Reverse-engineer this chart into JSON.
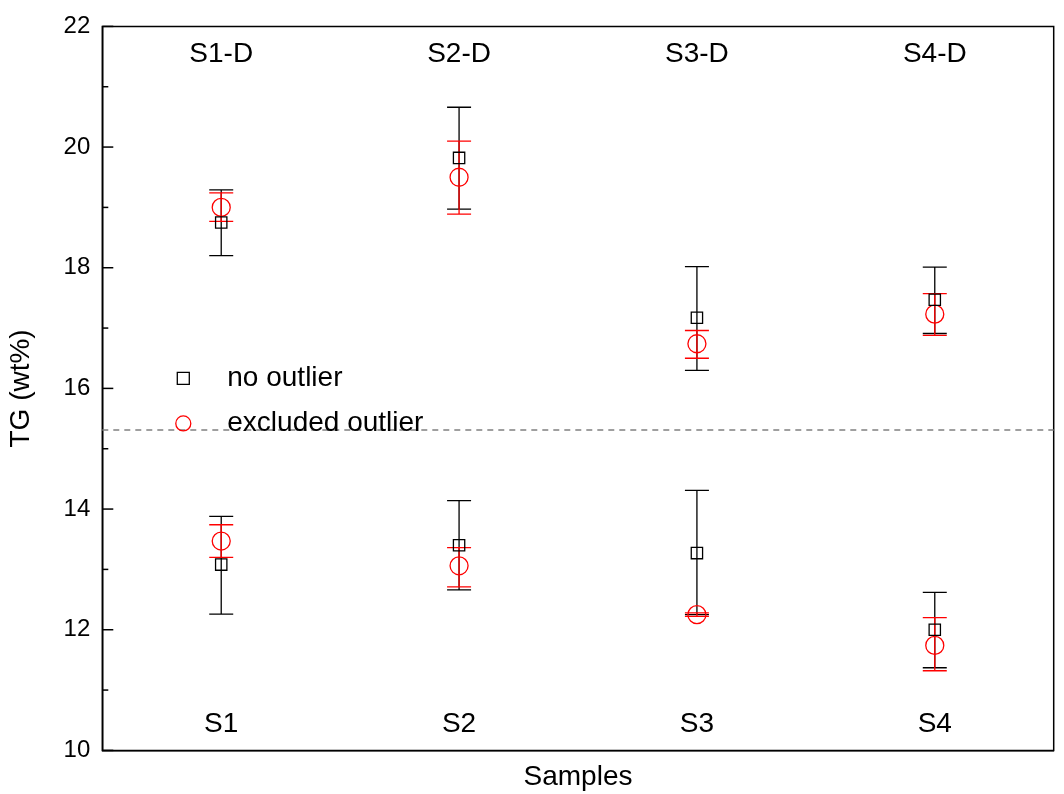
{
  "chart_data": {
    "type": "scatter",
    "xlabel": "Samples",
    "ylabel": "TG (wt%)",
    "categories": [
      "S1",
      "S2",
      "S3",
      "S4"
    ],
    "ylim": [
      10,
      22
    ],
    "yticks": [
      10,
      {
        "value": 11,
        "label": null
      },
      12,
      {
        "value": 13,
        "label": null
      },
      14,
      {
        "value": 15,
        "label": null
      },
      16,
      {
        "value": 17,
        "label": null
      },
      18,
      {
        "value": 19,
        "label": null
      },
      20,
      {
        "value": 21,
        "label": null
      },
      22
    ],
    "series": [
      {
        "name": "no outlier",
        "color": "#000000",
        "marker": "square",
        "x": [
          "S1",
          "S1",
          "S2",
          "S2",
          "S3",
          "S3",
          "S4",
          "S4"
        ],
        "values": [
          13.08,
          18.75,
          13.4,
          19.82,
          13.27,
          17.17,
          12.0,
          17.47
        ],
        "errors": [
          [
            12.26,
            13.88
          ],
          [
            18.2,
            19.29
          ],
          [
            12.66,
            14.14
          ],
          [
            18.97,
            20.66
          ],
          [
            12.25,
            14.31
          ],
          [
            16.3,
            18.02
          ],
          [
            11.37,
            12.62
          ],
          [
            16.91,
            18.01
          ]
        ]
      },
      {
        "name": "excluded outlier",
        "color": "#ff0000",
        "marker": "circle",
        "x": [
          "S1",
          "S1",
          "S2",
          "S2",
          "S3",
          "S3",
          "S4",
          "S4"
        ],
        "values": [
          13.47,
          19.0,
          13.06,
          19.5,
          12.25,
          16.74,
          11.74,
          17.23
        ],
        "errors": [
          [
            13.2,
            13.74
          ],
          [
            18.77,
            19.24
          ],
          [
            12.71,
            13.36
          ],
          [
            18.89,
            20.1
          ],
          [
            12.22,
            12.28
          ],
          [
            16.5,
            16.96
          ],
          [
            11.32,
            12.2
          ],
          [
            16.88,
            17.57
          ]
        ]
      }
    ],
    "ref_lines": [
      {
        "axis": "y",
        "value": 15.31,
        "color": "#808080",
        "line_style": "dashed"
      }
    ],
    "annotations": [
      "S1-D",
      "S2-D",
      "S3-D",
      "S4-D"
    ],
    "legend": "left",
    "grid": false
  }
}
